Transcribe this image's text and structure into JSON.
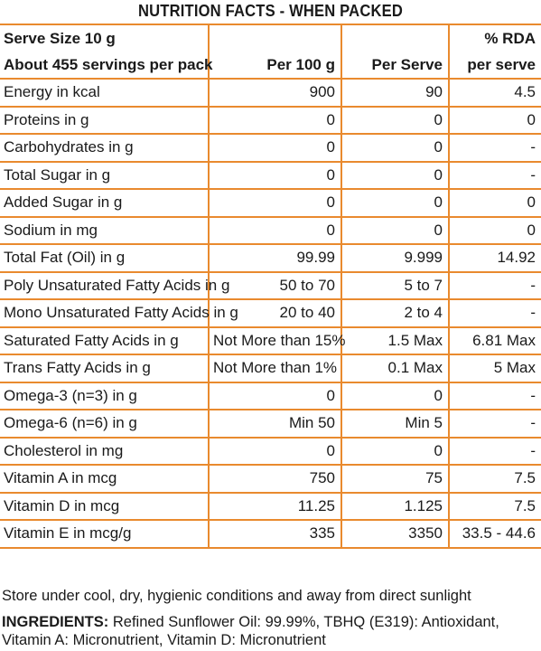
{
  "title": "NUTRITION FACTS - WHEN PACKED",
  "header": {
    "serve_size": "Serve Size 10 g",
    "servings": "About 455 servings per pack",
    "col_per100": "Per 100 g",
    "col_per_serve": "Per Serve",
    "col_rda_top": "% RDA",
    "col_rda_bottom": "per serve"
  },
  "rows": [
    {
      "name": "Energy in kcal",
      "per100": "900",
      "serve": "90",
      "rda": "4.5"
    },
    {
      "name": "Proteins in g",
      "per100": "0",
      "serve": "0",
      "rda": "0"
    },
    {
      "name": "Carbohydrates in g",
      "per100": "0",
      "serve": "0",
      "rda": "-"
    },
    {
      "name": "Total Sugar in g",
      "per100": "0",
      "serve": "0",
      "rda": "-"
    },
    {
      "name": "Added Sugar in g",
      "per100": "0",
      "serve": "0",
      "rda": "0"
    },
    {
      "name": "Sodium in mg",
      "per100": "0",
      "serve": "0",
      "rda": "0"
    },
    {
      "name": "Total Fat (Oil) in g",
      "per100": "99.99",
      "serve": "9.999",
      "rda": "14.92"
    },
    {
      "name": "Poly Unsaturated Fatty Acids in g",
      "per100": "50 to 70",
      "serve": "5 to 7",
      "rda": "-"
    },
    {
      "name": "Mono Unsaturated Fatty Acids in g",
      "per100": "20 to 40",
      "serve": "2 to 4",
      "rda": "-"
    },
    {
      "name": "Saturated Fatty Acids in g",
      "per100": "Not More than 15%",
      "serve": "1.5 Max",
      "rda": "6.81 Max"
    },
    {
      "name": "Trans Fatty Acids in g",
      "per100": "Not More than 1%",
      "serve": "0.1 Max",
      "rda": "5 Max"
    },
    {
      "name": "Omega-3 (n=3) in g",
      "per100": "0",
      "serve": "0",
      "rda": "-"
    },
    {
      "name": "Omega-6 (n=6) in g",
      "per100": "Min 50",
      "serve": "Min 5",
      "rda": "-"
    },
    {
      "name": "Cholesterol in mg",
      "per100": "0",
      "serve": "0",
      "rda": "-"
    },
    {
      "name": "Vitamin A in mcg",
      "per100": "750",
      "serve": "75",
      "rda": "7.5"
    },
    {
      "name": "Vitamin D in mcg",
      "per100": "11.25",
      "serve": "1.125",
      "rda": "7.5"
    },
    {
      "name": "Vitamin E in mcg/g",
      "per100": "335",
      "serve": "3350",
      "rda": "33.5 - 44.6"
    }
  ],
  "storage_note": "Store under cool, dry, hygienic conditions and away from direct sunlight",
  "ingredients": {
    "label": "INGREDIENTS:",
    "text": " Refined Sunflower Oil: 99.99%, TBHQ (E319): Antioxidant, Vitamin A: Micronutrient, Vitamin D: Micronutrient"
  },
  "colors": {
    "border": "#e98a2e",
    "text": "#1a1a1a"
  }
}
